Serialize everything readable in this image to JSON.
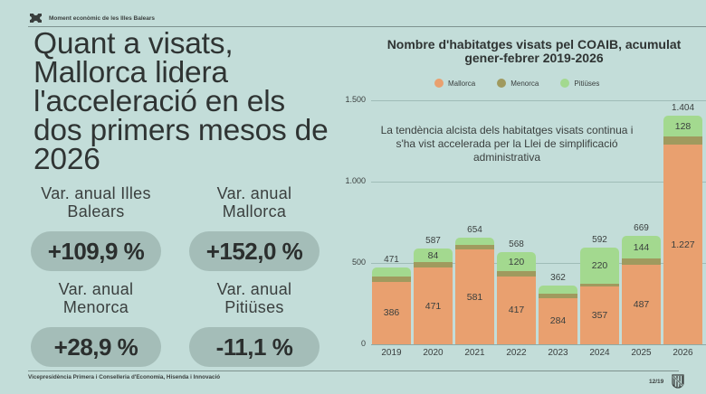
{
  "header": {
    "section_title": "Moment econòmic de les Illes Balears",
    "logo_icon": "puzzle-piece-icon"
  },
  "headline": "Quant a visats, Mallorca lidera l'acceleració en els dos primers mesos de 2026",
  "kpis": [
    {
      "label": "Var. anual Illes Balears",
      "value": "+109,9 %"
    },
    {
      "label": "Var. anual Mallorca",
      "value": "+152,0 %"
    },
    {
      "label": "Var. anual Menorca",
      "value": "+28,9 %"
    },
    {
      "label": "Var. anual Pitiüses",
      "value": "-11,1 %"
    }
  ],
  "footer": {
    "department": "Vicepresidència Primera i Conselleria d'Economia, Hisenda i Innovació",
    "page": "12/19",
    "emblem_icon": "shield-emblem-icon"
  },
  "colors": {
    "background": "#c3ddd9",
    "mallorca": "#e9a06f",
    "menorca": "#a09a5e",
    "pitiuses": "#a3d98f",
    "pill": "#a4bdb8"
  },
  "chart_data": {
    "type": "bar",
    "stacked": true,
    "title": "Nombre d'habitatges visats pel COAIB, acumulat gener-febrer 2019-2026",
    "xlabel": "",
    "ylabel": "",
    "ylim": [
      0,
      1500
    ],
    "yticks": [
      "0",
      "500",
      "1.000",
      "1.500"
    ],
    "grid": true,
    "legend_position": "top",
    "categories": [
      "2019",
      "2020",
      "2021",
      "2022",
      "2023",
      "2024",
      "2025",
      "2026"
    ],
    "series": [
      {
        "name": "Mallorca",
        "color": "#e9a06f",
        "values": [
          386,
          471,
          581,
          417,
          284,
          357,
          487,
          1227
        ],
        "labels": [
          "386",
          "471",
          "581",
          "417",
          "284",
          "357",
          "487",
          "1.227"
        ]
      },
      {
        "name": "Menorca",
        "color": "#a09a5e",
        "values": [
          30,
          32,
          30,
          31,
          27,
          15,
          38,
          49
        ],
        "labels": [
          "",
          "",
          "",
          "",
          "",
          "",
          "",
          ""
        ]
      },
      {
        "name": "Pitiüses",
        "color": "#a3d98f",
        "values": [
          55,
          84,
          43,
          120,
          51,
          220,
          144,
          128
        ],
        "labels": [
          "",
          "84",
          "",
          "120",
          "",
          "220",
          "144",
          "128"
        ]
      }
    ],
    "totals": [
      471,
      587,
      654,
      568,
      362,
      592,
      669,
      1404
    ],
    "total_labels": [
      "471",
      "587",
      "654",
      "568",
      "362",
      "592",
      "669",
      "1.404"
    ],
    "annotation": "La tendència alcista dels habitatges visats continua i s'ha vist accelerada per la Llei de simplificació administrativa"
  }
}
